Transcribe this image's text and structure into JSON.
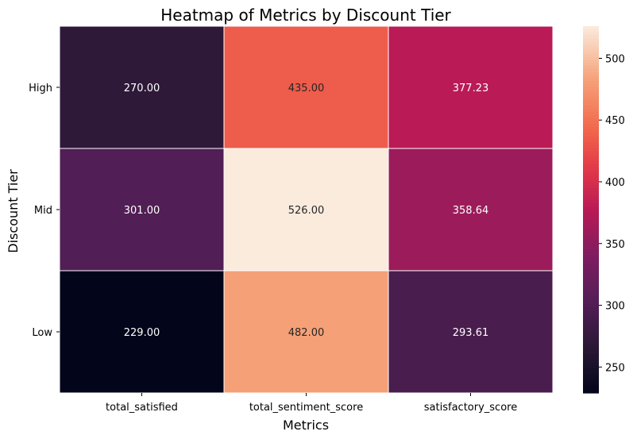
{
  "chart_data": {
    "type": "heatmap",
    "title": "Heatmap of Metrics by Discount Tier",
    "xlabel": "Metrics",
    "ylabel": "Discount Tier",
    "x_categories": [
      "total_satisfied",
      "total_sentiment_score",
      "satisfactory_score"
    ],
    "y_categories": [
      "High",
      "Mid",
      "Low"
    ],
    "values": [
      [
        270.0,
        435.0,
        377.23
      ],
      [
        301.0,
        526.0,
        358.64
      ],
      [
        229.0,
        482.0,
        293.61
      ]
    ],
    "value_labels": [
      [
        "270.00",
        "435.00",
        "377.23"
      ],
      [
        "301.00",
        "526.00",
        "358.64"
      ],
      [
        "229.00",
        "482.00",
        "293.61"
      ]
    ],
    "colorbar": {
      "min": 229,
      "max": 526,
      "ticks": [
        250,
        300,
        350,
        400,
        450,
        500
      ],
      "tick_labels": [
        "250",
        "300",
        "350",
        "400",
        "450",
        "500"
      ],
      "colormap": "rocket"
    }
  }
}
